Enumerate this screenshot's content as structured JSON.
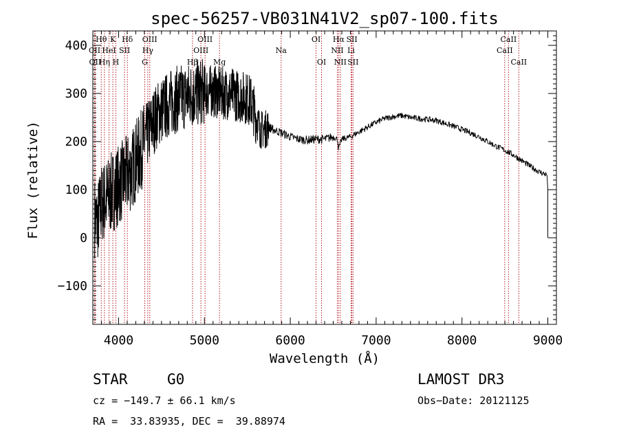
{
  "chart_data": {
    "type": "line",
    "title": "spec-56257-VB031N41V2_sp07-100.fits",
    "xlabel": "Wavelength (Å)",
    "ylabel": "Flux (relative)",
    "xlim": [
      3700,
      9100
    ],
    "ylim": [
      -180,
      430
    ],
    "x_ticks": [
      4000,
      5000,
      6000,
      7000,
      8000,
      9000
    ],
    "y_ticks": [
      -100,
      0,
      100,
      200,
      300,
      400
    ],
    "x_tick_labels": [
      "4000",
      "5000",
      "6000",
      "7000",
      "8000",
      "9000"
    ],
    "y_tick_labels": [
      "−100",
      "0",
      "100",
      "200",
      "300",
      "400"
    ],
    "series": [
      {
        "name": "spectrum",
        "color": "#000000",
        "x": [
          3700,
          3750,
          3800,
          3850,
          3900,
          3950,
          4000,
          4050,
          4100,
          4150,
          4200,
          4250,
          4300,
          4350,
          4400,
          4450,
          4500,
          4600,
          4700,
          4800,
          4900,
          5000,
          5100,
          5200,
          5300,
          5400,
          5500,
          5550,
          5600,
          5650,
          5700,
          5750,
          5800,
          5900,
          6000,
          6100,
          6200,
          6300,
          6400,
          6500,
          6550,
          6563,
          6600,
          6700,
          6800,
          6900,
          7000,
          7100,
          7200,
          7300,
          7400,
          7500,
          7600,
          7700,
          7800,
          7900,
          8000,
          8100,
          8200,
          8300,
          8400,
          8500,
          8600,
          8700,
          8800,
          8900,
          9000
        ],
        "y": [
          50,
          30,
          70,
          80,
          90,
          100,
          110,
          120,
          130,
          140,
          160,
          175,
          200,
          220,
          240,
          255,
          265,
          280,
          290,
          295,
          300,
          305,
          305,
          300,
          300,
          295,
          290,
          280,
          250,
          225,
          225,
          230,
          225,
          218,
          210,
          205,
          203,
          205,
          205,
          210,
          205,
          185,
          205,
          210,
          220,
          230,
          240,
          248,
          252,
          254,
          250,
          248,
          246,
          244,
          238,
          232,
          225,
          218,
          210,
          200,
          190,
          182,
          172,
          160,
          148,
          137,
          130
        ]
      }
    ],
    "lines": [
      {
        "label": "Hθ",
        "x": 3798,
        "row": 1
      },
      {
        "label": "K",
        "x": 3933,
        "row": 1
      },
      {
        "label": "Hδ",
        "x": 4102,
        "row": 1
      },
      {
        "label": "OIII",
        "x": 4363,
        "row": 1
      },
      {
        "label": "OIII",
        "x": 5007,
        "row": 1
      },
      {
        "label": "OI",
        "x": 6300,
        "row": 1
      },
      {
        "label": "Hα",
        "x": 6563,
        "row": 1
      },
      {
        "label": "SII",
        "x": 6717,
        "row": 1
      },
      {
        "label": "CaII",
        "x": 8542,
        "row": 1
      },
      {
        "label": "CII",
        "x": 3720,
        "row": 2
      },
      {
        "label": "HeI",
        "x": 3888,
        "row": 2
      },
      {
        "label": "SII",
        "x": 4069,
        "row": 2
      },
      {
        "label": "Hγ",
        "x": 4340,
        "row": 2
      },
      {
        "label": "OIII",
        "x": 4959,
        "row": 2
      },
      {
        "label": "Na",
        "x": 5893,
        "row": 2
      },
      {
        "label": "NII",
        "x": 6548,
        "row": 2
      },
      {
        "label": "Li",
        "x": 6708,
        "row": 2
      },
      {
        "label": "CaII",
        "x": 8498,
        "row": 2
      },
      {
        "label": "OII",
        "x": 3727,
        "row": 3
      },
      {
        "label": "Hη",
        "x": 3835,
        "row": 3
      },
      {
        "label": "H",
        "x": 3968,
        "row": 3
      },
      {
        "label": "G",
        "x": 4305,
        "row": 3
      },
      {
        "label": "Hβ",
        "x": 4861,
        "row": 3
      },
      {
        "label": "Mg",
        "x": 5175,
        "row": 3
      },
      {
        "label": "OI",
        "x": 6364,
        "row": 3
      },
      {
        "label": "NII",
        "x": 6583,
        "row": 3
      },
      {
        "label": "SII",
        "x": 6731,
        "row": 3
      },
      {
        "label": "CaII",
        "x": 8662,
        "row": 3
      }
    ]
  },
  "footer": {
    "class_label": "STAR",
    "subclass": "G0",
    "survey": "LAMOST DR3",
    "redshift_text": "cz = −149.7 ± 66.1 km/s",
    "obs_date_text": "Obs−Date: 20121125",
    "coords_text": "RA =  33.83935, DEC =  39.88974"
  }
}
